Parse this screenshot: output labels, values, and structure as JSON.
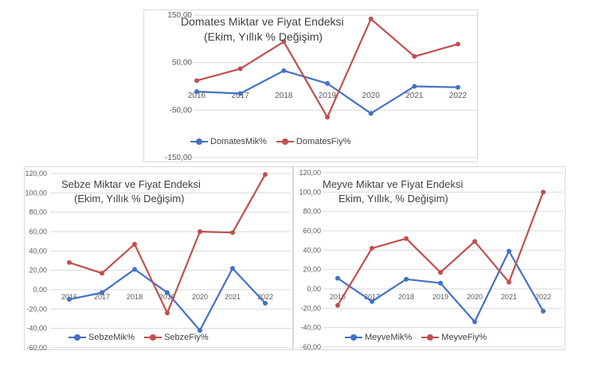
{
  "chart_data": [
    {
      "type": "line",
      "title": "Domates Miktar ve Fiyat Endeksi",
      "subtitle": "(Ekim, Yıllık % Değişim)",
      "categories": [
        "2016",
        "2017",
        "2018",
        "2019",
        "2020",
        "2021",
        "2022"
      ],
      "series": [
        {
          "name": "DomatesMik%",
          "color": "#4472c4",
          "values": [
            -11,
            -15,
            33,
            6,
            -57,
            0,
            -2
          ]
        },
        {
          "name": "DomatesFiy%",
          "color": "#c0504d",
          "values": [
            12,
            37,
            94,
            -65,
            142,
            63,
            89
          ]
        }
      ],
      "ylim": [
        -150,
        150
      ],
      "yticks": [
        "150,00",
        "50,00",
        "-50,00",
        "-150,00"
      ],
      "ytick_values": [
        150,
        50,
        -50,
        -150
      ],
      "xlabel": "",
      "ylabel": "",
      "grid": true,
      "legend": "bottom-left"
    },
    {
      "type": "line",
      "title": "Sebze Miktar ve Fiyat Endeksi",
      "subtitle": "(Ekim, Yıllık % Değişim)",
      "categories": [
        "2016",
        "2017",
        "2018",
        "2019",
        "2020",
        "2021",
        "2022"
      ],
      "series": [
        {
          "name": "SebzeMik%",
          "color": "#4472c4",
          "values": [
            -10,
            -3,
            21,
            -3,
            -42,
            22,
            -14
          ]
        },
        {
          "name": "SebzeFiy%",
          "color": "#c0504d",
          "values": [
            28,
            17,
            47,
            -24,
            60,
            59,
            119
          ]
        }
      ],
      "ylim": [
        -60,
        120
      ],
      "yticks": [
        "120,00",
        "100,00",
        "80,00",
        "60,00",
        "40,00",
        "20,00",
        "0,00",
        "-20,00",
        "-40,00",
        "-60,00"
      ],
      "ytick_values": [
        120,
        100,
        80,
        60,
        40,
        20,
        0,
        -20,
        -40,
        -60
      ],
      "xlabel": "",
      "ylabel": "",
      "grid": true,
      "legend": "bottom-left"
    },
    {
      "type": "line",
      "title": "Meyve Miktar ve Fiyat Endeksi",
      "subtitle": "Ekim, Yıllık, % Değişim)",
      "categories": [
        "2016",
        "2017",
        "2018",
        "2019",
        "2020",
        "2021",
        "2022"
      ],
      "series": [
        {
          "name": "MeyveMik%",
          "color": "#4472c4",
          "values": [
            11,
            -13,
            10,
            6,
            -34,
            39,
            -23
          ]
        },
        {
          "name": "MeyveFiy%",
          "color": "#c0504d",
          "values": [
            -17,
            42,
            52,
            17,
            49,
            7,
            100
          ]
        }
      ],
      "ylim": [
        -60,
        120
      ],
      "yticks": [
        "120,00",
        "100,00",
        "80,00",
        "60,00",
        "40,00",
        "20,00",
        "0,00",
        "-20,00",
        "-40,00",
        "-60,00"
      ],
      "ytick_values": [
        120,
        100,
        80,
        60,
        40,
        20,
        0,
        -20,
        -40,
        -60
      ],
      "xlabel": "",
      "ylabel": "",
      "grid": true,
      "legend": "bottom-left"
    }
  ]
}
